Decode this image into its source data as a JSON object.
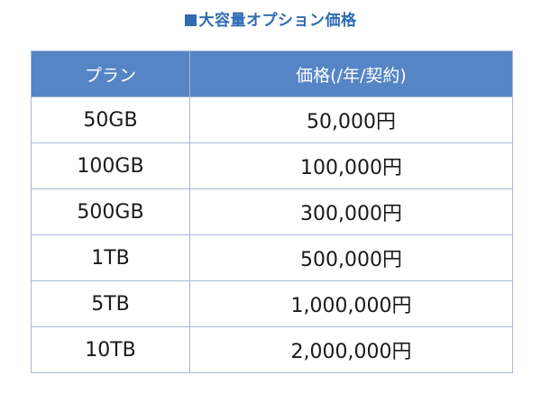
{
  "title": "大容量オプション価格",
  "table": {
    "headers": [
      "プラン",
      "価格(/年/契約)"
    ],
    "rows": [
      {
        "plan": "50GB",
        "price": "50,000円"
      },
      {
        "plan": "100GB",
        "price": "100,000円"
      },
      {
        "plan": "500GB",
        "price": "300,000円"
      },
      {
        "plan": "1TB",
        "price": "500,000円"
      },
      {
        "plan": "5TB",
        "price": "1,000,000円"
      },
      {
        "plan": "10TB",
        "price": "2,000,000円"
      }
    ]
  },
  "colors": {
    "accent": "#2f6bb4",
    "header_bg": "#5585c5",
    "border": "#a9b8d6"
  }
}
